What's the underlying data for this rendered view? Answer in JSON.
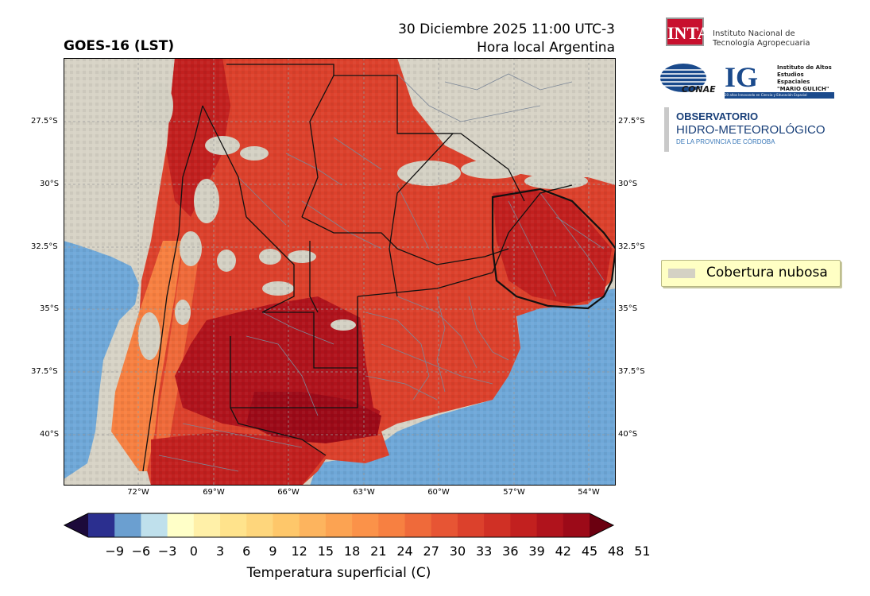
{
  "title": "GOES-16 (LST)",
  "datetime_line1": "30 Diciembre 2025 11:00 UTC-3",
  "datetime_line2": "Hora local Argentina",
  "map": {
    "lat_labels": [
      "27.5°S",
      "30°S",
      "32.5°S",
      "35°S",
      "37.5°S",
      "40°S"
    ],
    "lon_labels": [
      "72°W",
      "69°W",
      "66°W",
      "63°W",
      "60°W",
      "57°W",
      "54°W"
    ],
    "colors": {
      "land_no_data": "#d7d3c6",
      "ocean": "#6fa8d8",
      "borders": "#111111",
      "departments": "#7c8797"
    }
  },
  "legend": {
    "label": "Cobertura nubosa",
    "swatch_color": "#d4d1c4"
  },
  "colorbar": {
    "label": "Temperatura superficial (C)",
    "ticks": [
      "−9",
      "−6",
      "−3",
      "0",
      "3",
      "6",
      "9",
      "12",
      "15",
      "18",
      "21",
      "24",
      "27",
      "30",
      "33",
      "36",
      "39",
      "42",
      "45",
      "48",
      "51"
    ],
    "colors": [
      "#2b2f8f",
      "#6b9fd0",
      "#bfe0ec",
      "#ffffc8",
      "#fff0a8",
      "#ffe38c",
      "#fed67c",
      "#fec76a",
      "#fdb45e",
      "#fca352",
      "#fb9249",
      "#f78041",
      "#ef6a3a",
      "#e75534",
      "#dc412c",
      "#d03025",
      "#c2201f",
      "#b0131c",
      "#9c0a18"
    ],
    "under_color": "#1c0a3a",
    "over_color": "#6b0010"
  },
  "logos": {
    "inta_mark": "INTA",
    "inta_name_1": "Instituto Nacional de",
    "inta_name_2": "Tecnología Agropecuaria",
    "conae": "CONAE",
    "ig_mark": "IG",
    "ig_name_1": "Instituto de Altos",
    "ig_name_2": "Estudios Espaciales",
    "ig_name_3": "\"MARIO GULICH\"",
    "ig_bar": "20 años Innovando en Ciencia y Educación Espacial",
    "obs_1": "OBSERVATORIO",
    "obs_2": "HIDRO-METEOROLÓGICO",
    "obs_3": "DE LA PROVINCIA DE CÓRDOBA"
  }
}
